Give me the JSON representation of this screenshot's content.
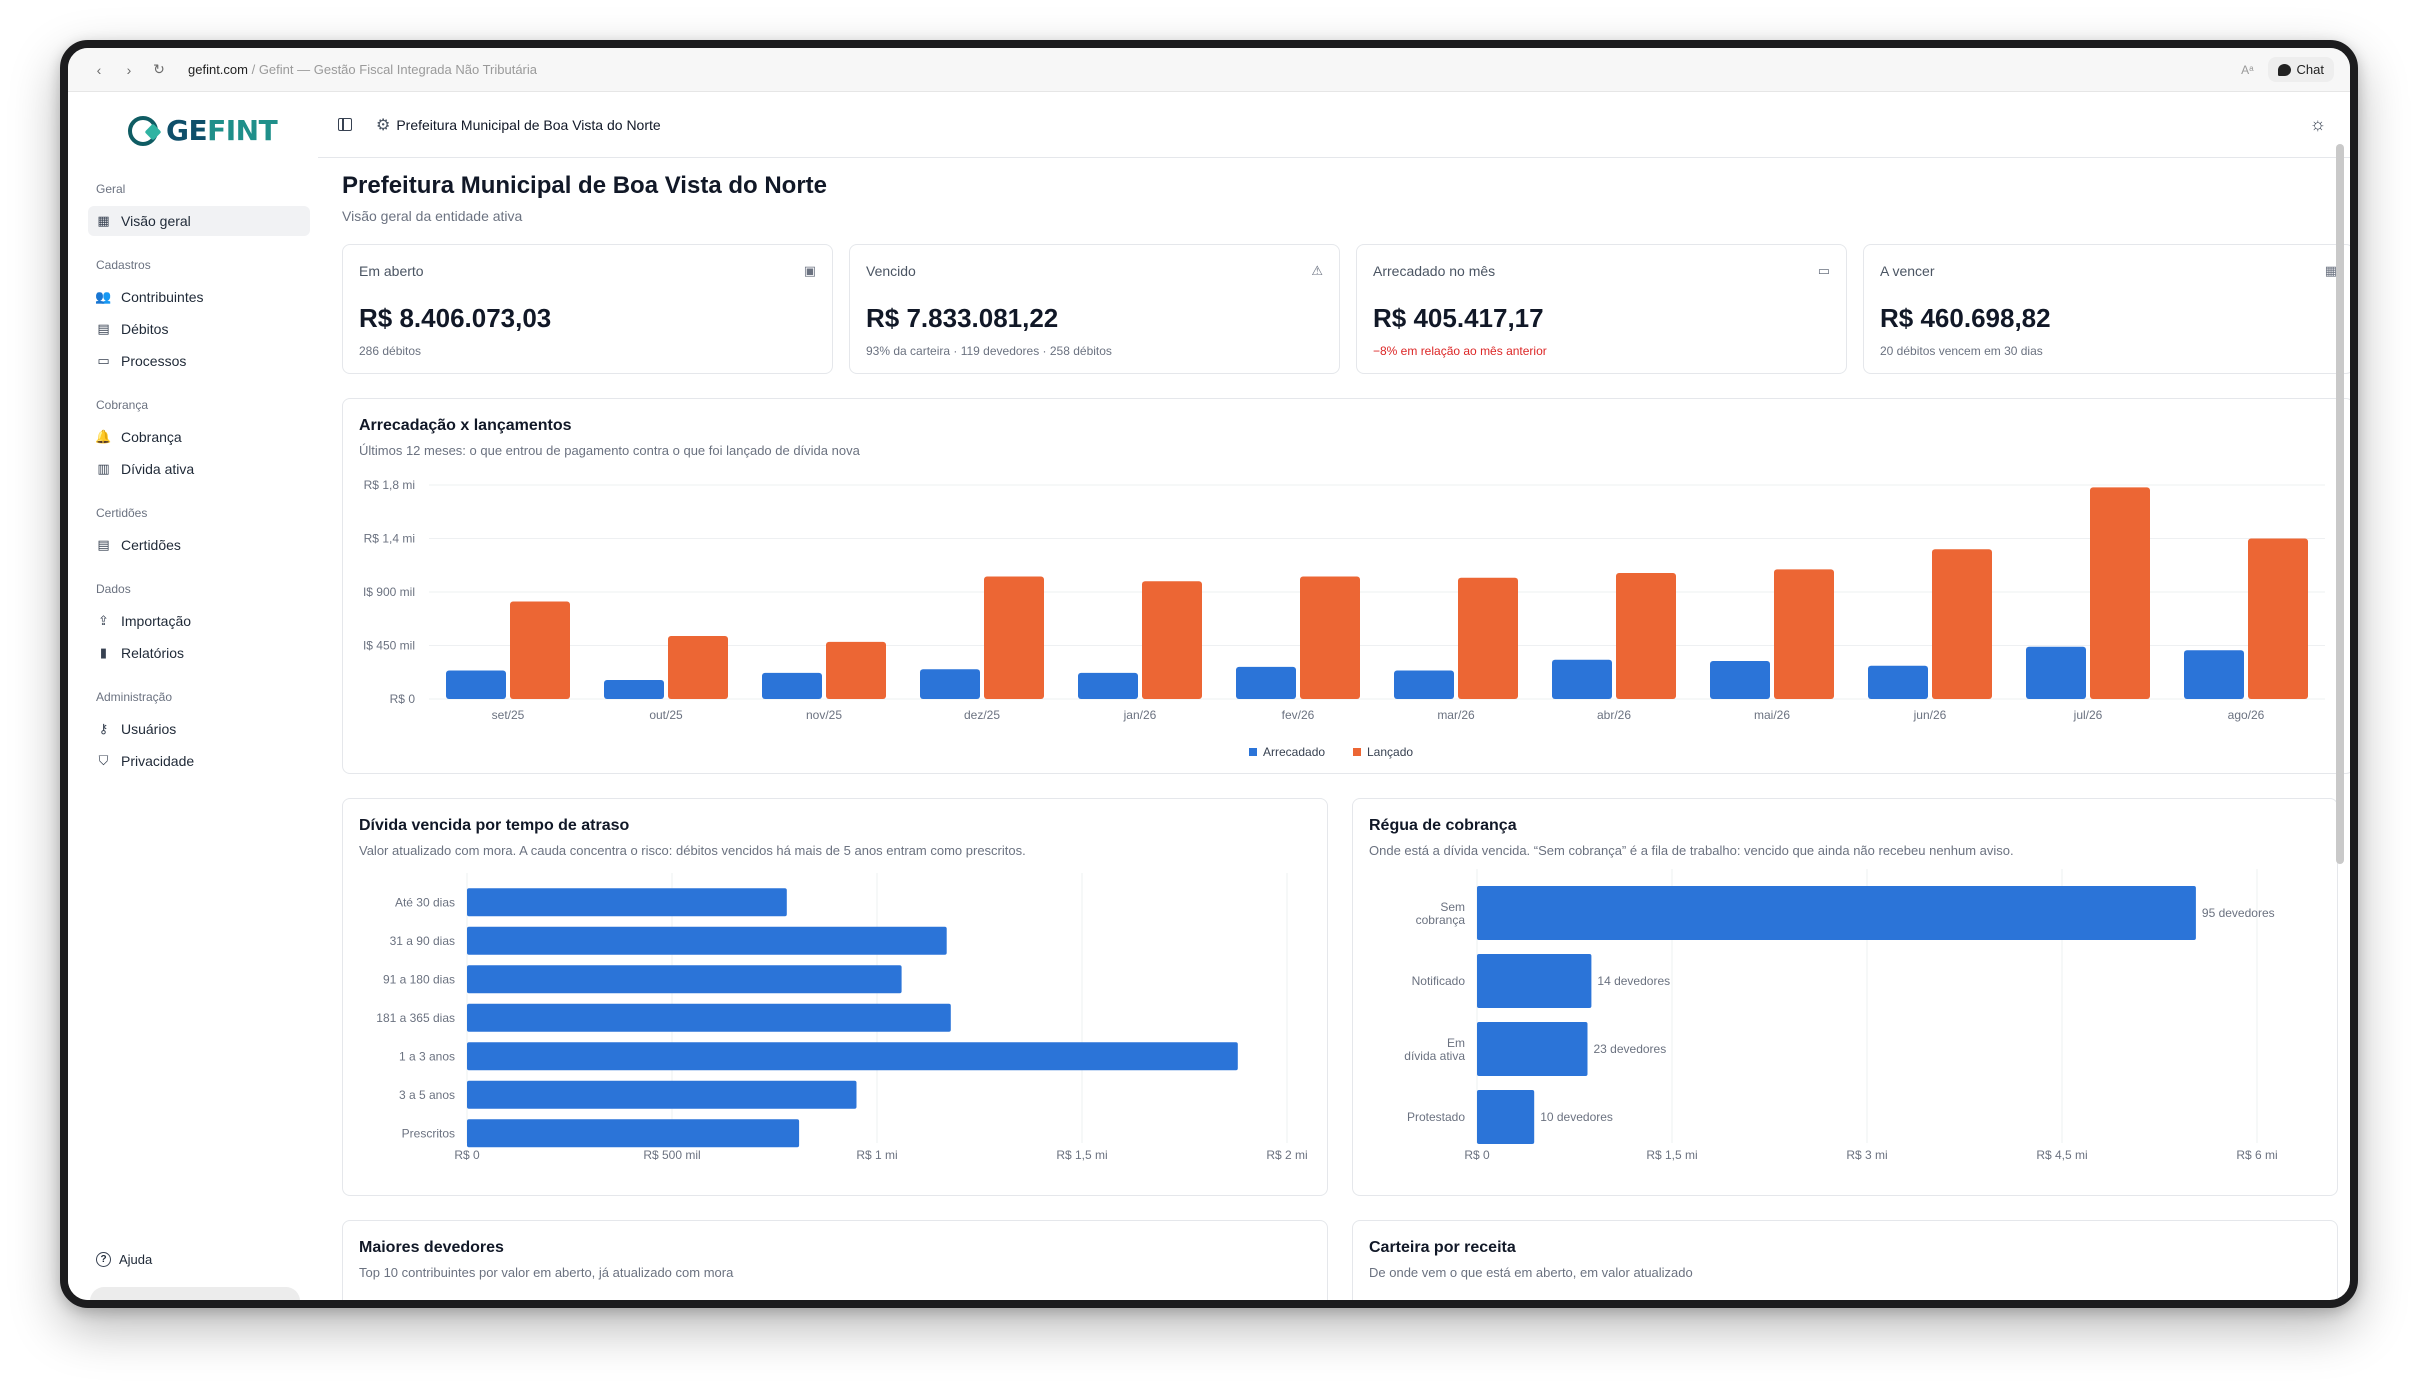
{
  "browser": {
    "url_domain": "gefint.com",
    "url_rest": " / Gefint — Gestão Fiscal Integrada Não Tributária",
    "translate_label": "Aᵃ",
    "chat_label": "Chat"
  },
  "sidebar": {
    "logo": {
      "part1": "GE",
      "part2": "FINT"
    },
    "groups": [
      {
        "title": "Geral",
        "items": [
          {
            "label": "Visão geral",
            "icon": "grid-icon",
            "glyph": "▦",
            "active": true
          }
        ]
      },
      {
        "title": "Cadastros",
        "items": [
          {
            "label": "Contribuintes",
            "icon": "users-icon",
            "glyph": "👥"
          },
          {
            "label": "Débitos",
            "icon": "receipt-icon",
            "glyph": "▤"
          },
          {
            "label": "Processos",
            "icon": "folder-icon",
            "glyph": "▭"
          }
        ]
      },
      {
        "title": "Cobrança",
        "items": [
          {
            "label": "Cobrança",
            "icon": "bell-icon",
            "glyph": "🔔"
          },
          {
            "label": "Dívida ativa",
            "icon": "book-icon",
            "glyph": "▥"
          }
        ]
      },
      {
        "title": "Certidões",
        "items": [
          {
            "label": "Certidões",
            "icon": "document-icon",
            "glyph": "▤"
          }
        ]
      },
      {
        "title": "Dados",
        "items": [
          {
            "label": "Importação",
            "icon": "upload-icon",
            "glyph": "⇪"
          },
          {
            "label": "Relatórios",
            "icon": "bar-chart-icon",
            "glyph": "▮"
          }
        ]
      },
      {
        "title": "Administração",
        "items": [
          {
            "label": "Usuários",
            "icon": "user-key-icon",
            "glyph": "⚷"
          },
          {
            "label": "Privacidade",
            "icon": "shield-icon",
            "glyph": "⛉"
          }
        ]
      }
    ],
    "help_label": "Ajuda"
  },
  "topbar": {
    "entity": "Prefeitura Municipal de Boa Vista do Norte"
  },
  "page": {
    "title": "Prefeitura Municipal de Boa Vista do Norte",
    "subtitle": "Visão geral da entidade ativa"
  },
  "cards": [
    {
      "label": "Em aberto",
      "value": "R$ 8.406.073,03",
      "note": "286 débitos",
      "icon": "wallet-icon",
      "glyph": "▣",
      "negative": false
    },
    {
      "label": "Vencido",
      "value": "R$ 7.833.081,22",
      "note": "93% da carteira · 119 devedores · 258 débitos",
      "icon": "warning-icon",
      "glyph": "⚠",
      "negative": false
    },
    {
      "label": "Arrecadado no mês",
      "value": "R$ 405.417,17",
      "note": "−8% em relação ao mês anterior",
      "icon": "cash-icon",
      "glyph": "▭",
      "negative": true
    },
    {
      "label": "A vencer",
      "value": "R$ 460.698,82",
      "note": "20 débitos vencem em 30 dias",
      "icon": "calendar-icon",
      "glyph": "▦",
      "negative": false
    }
  ],
  "charts": {
    "main": {
      "title": "Arrecadação x lançamentos",
      "subtitle": "Últimos 12 meses: o que entrou de pagamento contra o que foi lançado de dívida nova"
    },
    "aging": {
      "title": "Dívida vencida por tempo de atraso",
      "subtitle": "Valor atualizado com mora. A cauda concentra o risco: débitos vencidos há mais de 5 anos entram como prescritos."
    },
    "regua": {
      "title": "Régua de cobrança",
      "subtitle": "Onde está a dívida vencida. “Sem cobrança” é a fila de trabalho: vencido que ainda não recebeu nenhum aviso."
    },
    "devedores": {
      "title": "Maiores devedores",
      "subtitle": "Top 10 contribuintes por valor em aberto, já atualizado com mora"
    },
    "carteira": {
      "title": "Carteira por receita",
      "subtitle": "De onde vem o que está em aberto, em valor atualizado"
    }
  },
  "chart_data": [
    {
      "type": "bar",
      "categories": [
        "set/25",
        "out/25",
        "nov/25",
        "dez/25",
        "jan/26",
        "fev/26",
        "mar/26",
        "abr/26",
        "mai/26",
        "jun/26",
        "jul/26",
        "ago/26"
      ],
      "series": [
        {
          "name": "Arrecadado",
          "color": "#2B74D8",
          "values": [
            240000,
            160000,
            220000,
            250000,
            220000,
            270000,
            240000,
            330000,
            320000,
            280000,
            440000,
            410000
          ]
        },
        {
          "name": "Lançado",
          "color": "#EC6634",
          "values": [
            820000,
            530000,
            480000,
            1030000,
            990000,
            1030000,
            1020000,
            1060000,
            1090000,
            1260000,
            1780000,
            1350000
          ]
        }
      ],
      "yticks": [
        "R$ 0",
        "I$ 450 mil",
        "I$ 900 mil",
        "R$ 1,4 mi",
        "R$ 1,8 mi"
      ],
      "ylim": [
        0,
        1800000
      ],
      "legend": "bottom",
      "grid": true
    },
    {
      "type": "bar",
      "orientation": "horizontal",
      "categories": [
        "Até 30 dias",
        "31 a 90 dias",
        "91 a 180 dias",
        "181 a 365 dias",
        "1 a 3 anos",
        "3 a 5 anos",
        "Prescritos"
      ],
      "values": [
        780000,
        1170000,
        1060000,
        1180000,
        1880000,
        950000,
        810000
      ],
      "color": "#2B74D8",
      "xticks": [
        "R$ 0",
        "R$ 500 mil",
        "R$ 1 mi",
        "R$ 1,5 mi",
        "R$ 2 mi"
      ],
      "xlim": [
        0,
        2000000
      ],
      "grid": true
    },
    {
      "type": "bar",
      "orientation": "horizontal",
      "categories": [
        "Sem cobrança",
        "Notificado",
        "Em dívida ativa",
        "Protestado"
      ],
      "values": [
        5530000,
        880000,
        850000,
        440000
      ],
      "data_labels": [
        "95 devedores",
        "14 devedores",
        "23 devedores",
        "10 devedores"
      ],
      "color": "#2B74D8",
      "xticks": [
        "R$ 0",
        "R$ 1,5 mi",
        "R$ 3 mi",
        "R$ 4,5 mi",
        "R$ 6 mi"
      ],
      "xlim": [
        0,
        6000000
      ],
      "grid": true
    }
  ]
}
